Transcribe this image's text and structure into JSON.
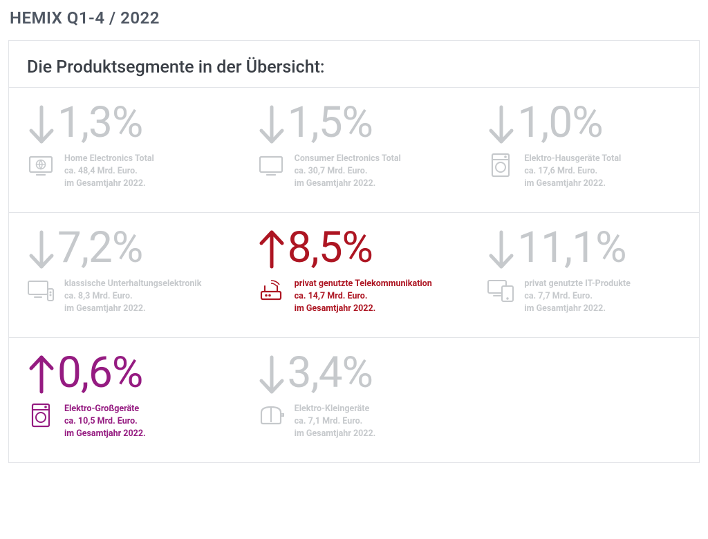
{
  "page_title": "HEMIX Q1-4 / 2022",
  "panel_heading": "Die Produktsegmente in der Übersicht:",
  "colors": {
    "grey": "#c6c9cc",
    "red": "#ad1522",
    "purple": "#951b81",
    "heading": "#4e5662",
    "text_dark": "#3a3f46",
    "border": "#e2e4e8",
    "background": "#ffffff"
  },
  "typography": {
    "pct_fontsize": 62,
    "pct_fontweight": 400,
    "desc_fontsize": 12.5,
    "desc_fontweight": 700,
    "heading_fontsize": 25,
    "page_title_fontsize": 24
  },
  "layout": {
    "columns": 3,
    "rows": 3,
    "cell_min_height": 180
  },
  "segments": [
    {
      "id": "home-electronics-total",
      "row": 0,
      "col": 0,
      "direction": "down",
      "value": "1,3%",
      "color": "grey",
      "icon": "tv-globe",
      "title": "Home Electronics Total",
      "line2": "ca. 48,4 Mrd. Euro.",
      "line3": "im Gesamtjahr 2022."
    },
    {
      "id": "consumer-electronics-total",
      "row": 0,
      "col": 1,
      "direction": "down",
      "value": "1,5%",
      "color": "grey",
      "icon": "tv",
      "title": "Consumer Electronics Total",
      "line2": "ca. 30,7 Mrd. Euro.",
      "line3": "im Gesamtjahr 2022."
    },
    {
      "id": "elektro-hausgeraete-total",
      "row": 0,
      "col": 2,
      "direction": "down",
      "value": "1,0%",
      "color": "grey",
      "icon": "washer",
      "title": "Elektro-Hausgeräte Total",
      "line2": "ca. 17,6 Mrd. Euro.",
      "line3": "im Gesamtjahr 2022."
    },
    {
      "id": "klassische-unterhaltungselektronik",
      "row": 1,
      "col": 0,
      "direction": "down",
      "value": "7,2%",
      "color": "grey",
      "icon": "tv-remote",
      "title": "klassische Unterhaltungselektronik",
      "line2": "ca. 8,3 Mrd. Euro.",
      "line3": "im Gesamtjahr 2022."
    },
    {
      "id": "privat-telekommunikation",
      "row": 1,
      "col": 1,
      "direction": "up",
      "value": "8,5%",
      "color": "red",
      "icon": "router",
      "title": "privat genutzte Telekommunikation",
      "line2": "ca. 14,7 Mrd. Euro.",
      "line3": "im Gesamtjahr 2022."
    },
    {
      "id": "privat-it-produkte",
      "row": 1,
      "col": 2,
      "direction": "down",
      "value": "11,1%",
      "color": "grey",
      "icon": "devices",
      "title": "privat genutzte IT-Produkte",
      "line2": "ca. 7,7 Mrd. Euro.",
      "line3": "im Gesamtjahr 2022."
    },
    {
      "id": "elektro-grossgeraete",
      "row": 2,
      "col": 0,
      "direction": "up",
      "value": "0,6%",
      "color": "purple",
      "icon": "washer",
      "title": "Elektro-Großgeräte",
      "line2": "ca. 10,5 Mrd. Euro.",
      "line3": "im Gesamtjahr 2022."
    },
    {
      "id": "elektro-kleingeraete",
      "row": 2,
      "col": 1,
      "direction": "down",
      "value": "3,4%",
      "color": "grey",
      "icon": "toaster",
      "title": "Elektro-Kleingeräte",
      "line2": "ca. 7,1 Mrd. Euro.",
      "line3": "im Gesamtjahr 2022."
    }
  ]
}
